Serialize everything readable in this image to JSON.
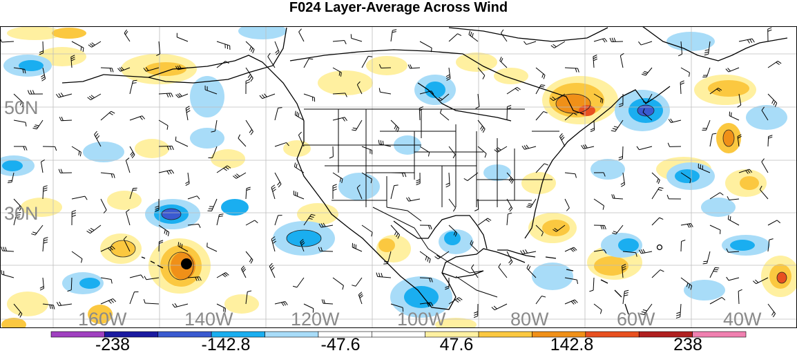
{
  "title": "F024 Layer-Average Across Wind",
  "latitude_labels": [
    "50N",
    "30N"
  ],
  "longitude_labels": [
    "160W",
    "140W",
    "120W",
    "100W",
    "80W",
    "60W",
    "40W"
  ],
  "colorbar": {
    "colors": [
      "#a040c0",
      "#1a1aa0",
      "#3a5ad0",
      "#1aaef0",
      "#a8dcf8",
      "#ffffff",
      "#ffffff",
      "#fff0a0",
      "#fbc840",
      "#f09018",
      "#e85020",
      "#b02020",
      "#f080b0"
    ],
    "labels": [
      "-238",
      "-142.8",
      "-47.6",
      "47.6",
      "142.8",
      "238"
    ]
  },
  "station_marker": "filled-circle-marker",
  "colors": {
    "coastline": "#000000",
    "grid": "#bdbdbd",
    "warm_light": "#fff0a0",
    "warm_mid": "#fbc840",
    "warm_strong": "#f09018",
    "warm_max": "#e85020",
    "cool_light": "#a8dcf8",
    "cool_mid": "#1aaef0",
    "cool_strong": "#3a5ad0"
  }
}
